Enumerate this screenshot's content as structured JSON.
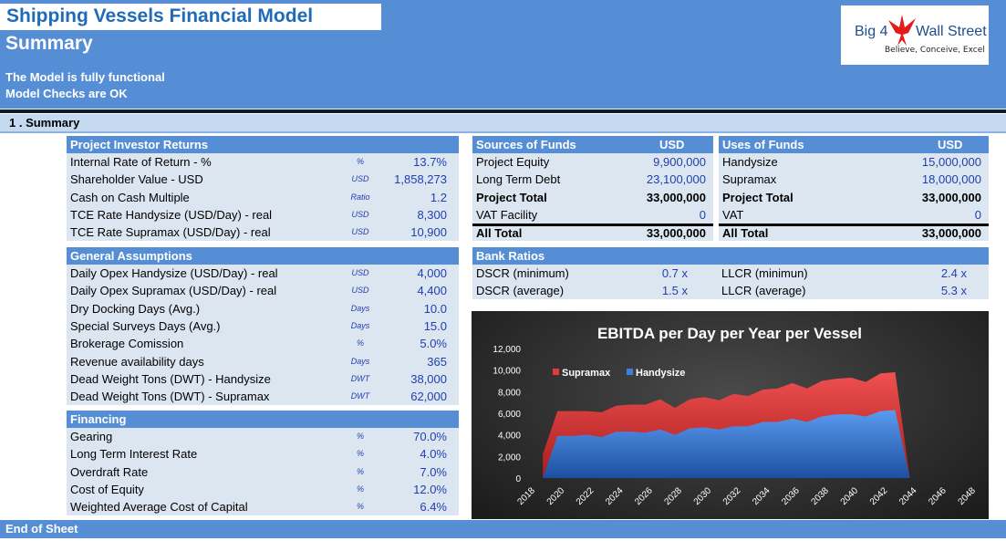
{
  "header": {
    "title": "Shipping Vessels Financial Model",
    "subtitle": "Summary",
    "status_1": "The Model is fully functional",
    "status_2": "Model Checks are OK"
  },
  "logo": {
    "brand_left": "Big 4",
    "brand_right": "Wall Street",
    "tagline": "Believe, Conceive, Excel"
  },
  "section": {
    "label": "1 . Summary"
  },
  "investor_returns": {
    "header": "Project Investor Returns",
    "rows": [
      {
        "label": "Internal Rate of Return - %",
        "unit": "%",
        "value": "13.7%"
      },
      {
        "label": "Shareholder Value - USD",
        "unit": "USD",
        "value": "1,858,273"
      },
      {
        "label": "Cash on Cash Multiple",
        "unit": "Ratio",
        "value": "1.2"
      },
      {
        "label": "TCE Rate Handysize (USD/Day) - real",
        "unit": "USD",
        "value": "8,300"
      },
      {
        "label": "TCE Rate Supramax (USD/Day) - real",
        "unit": "USD",
        "value": "10,900"
      }
    ]
  },
  "general_assumptions": {
    "header": "General Assumptions",
    "rows": [
      {
        "label": "Daily Opex Handysize (USD/Day) - real",
        "unit": "USD",
        "value": "4,000"
      },
      {
        "label": "Daily Opex Supramax (USD/Day) - real",
        "unit": "USD",
        "value": "4,400"
      },
      {
        "label": "Dry Docking Days (Avg.)",
        "unit": "Days",
        "value": "10.0"
      },
      {
        "label": "Special Surveys Days (Avg.)",
        "unit": "Days",
        "value": "15.0"
      },
      {
        "label": "Brokerage Comission",
        "unit": "%",
        "value": "5.0%"
      },
      {
        "label": "Revenue availability days",
        "unit": "Days",
        "value": "365"
      },
      {
        "label": "Dead Weight Tons (DWT) - Handysize",
        "unit": "DWT",
        "value": "38,000"
      },
      {
        "label": "Dead Weight Tons (DWT) - Supramax",
        "unit": "DWT",
        "value": "62,000"
      }
    ]
  },
  "financing": {
    "header": "Financing",
    "rows": [
      {
        "label": "Gearing",
        "unit": "%",
        "value": "70.0%"
      },
      {
        "label": "Long Term Interest Rate",
        "unit": "%",
        "value": "4.0%"
      },
      {
        "label": "Overdraft Rate",
        "unit": "%",
        "value": "7.0%"
      },
      {
        "label": "Cost of Equity",
        "unit": "%",
        "value": "12.0%"
      },
      {
        "label": "Weighted Average Cost of Capital",
        "unit": "%",
        "value": "6.4%"
      }
    ]
  },
  "sources": {
    "header": "Sources of Funds",
    "currency": "USD",
    "rows": [
      {
        "label": "Project Equity",
        "value": "9,900,000"
      },
      {
        "label": "Long Term Debt",
        "value": "23,100,000"
      },
      {
        "label": "Project Total",
        "value": "33,000,000"
      },
      {
        "label": "VAT Facility",
        "value": "0"
      },
      {
        "label": "All Total",
        "value": "33,000,000"
      }
    ]
  },
  "uses": {
    "header": "Uses of Funds",
    "currency": "USD",
    "rows": [
      {
        "label": "Handysize",
        "value": "15,000,000"
      },
      {
        "label": "Supramax",
        "value": "18,000,000"
      },
      {
        "label": "Project Total",
        "value": "33,000,000"
      },
      {
        "label": "VAT",
        "value": "0"
      },
      {
        "label": "All Total",
        "value": "33,000,000"
      }
    ]
  },
  "bank_ratios": {
    "header": "Bank Ratios",
    "rows": [
      {
        "label": "DSCR (minimum)",
        "value": "0.7 x",
        "label2": "LLCR (minimun)",
        "value2": "2.4 x"
      },
      {
        "label": "DSCR (average)",
        "value": "1.5 x",
        "label2": "LLCR (average)",
        "value2": "5.3 x"
      }
    ]
  },
  "chart_data": {
    "type": "area",
    "title": "EBITDA per Day per Year per Vessel",
    "x": [
      2019,
      2020,
      2021,
      2022,
      2023,
      2024,
      2025,
      2026,
      2027,
      2028,
      2029,
      2030,
      2031,
      2032,
      2033,
      2034,
      2035,
      2036,
      2037,
      2038,
      2039,
      2040,
      2041,
      2042,
      2043,
      2044
    ],
    "x_ticks": [
      "2018",
      "2020",
      "2022",
      "2024",
      "2026",
      "2028",
      "2030",
      "2032",
      "2034",
      "2036",
      "2038",
      "2040",
      "2042",
      "2044",
      "2046",
      "2048"
    ],
    "ylim": [
      0,
      12000
    ],
    "y_ticks": [
      "0",
      "2,000",
      "4,000",
      "6,000",
      "8,000",
      "10,000",
      "12,000"
    ],
    "legend": "top-left",
    "stacked": true,
    "series": [
      {
        "name": "Supramax",
        "color": "#e03c3c",
        "values": [
          2200,
          2300,
          2300,
          2200,
          2300,
          2400,
          2500,
          2600,
          2800,
          2500,
          2700,
          2800,
          2700,
          3000,
          2800,
          3000,
          3100,
          3300,
          3100,
          3300,
          3300,
          3400,
          3200,
          3500,
          3500,
          0
        ]
      },
      {
        "name": "Handysize",
        "color": "#3d7fd9",
        "values": [
          0,
          3900,
          3900,
          4000,
          3800,
          4300,
          4300,
          4200,
          4500,
          4000,
          4600,
          4700,
          4500,
          4800,
          4800,
          5200,
          5200,
          5500,
          5200,
          5700,
          5900,
          5900,
          5700,
          6200,
          6300,
          0
        ]
      }
    ]
  }
}
